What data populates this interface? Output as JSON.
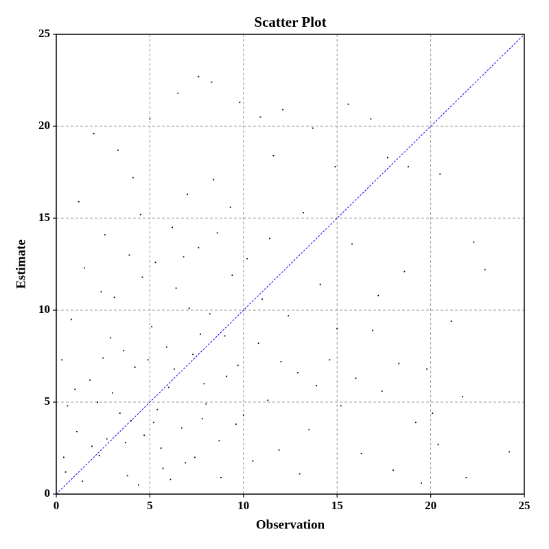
{
  "chart_data": {
    "type": "scatter",
    "title": "Scatter Plot",
    "x_label": "Observation",
    "y_label": "Estimate",
    "xlim": [
      0,
      25
    ],
    "ylim": [
      0,
      25
    ],
    "xticks": [
      0,
      5,
      10,
      15,
      20,
      25
    ],
    "yticks": [
      0,
      5,
      10,
      15,
      20,
      25
    ],
    "grid": true,
    "reference_line": {
      "color": "#0000ff",
      "x": [
        0,
        25
      ],
      "y": [
        0,
        25
      ]
    },
    "series": [
      {
        "color": "#000000",
        "x": [
          0.5,
          1.1,
          1.8,
          2.3,
          2.9,
          3.4,
          3.8,
          4.2,
          4.7,
          5.1,
          5.6,
          6.0,
          6.4,
          6.9,
          7.3,
          7.8,
          8.2,
          8.7,
          9.1,
          9.6,
          0.8,
          1.5,
          2.6,
          3.1,
          3.9,
          4.5,
          5.3,
          6.2,
          7.0,
          7.6,
          8.4,
          9.3,
          10.2,
          10.8,
          11.3,
          11.9,
          12.4,
          12.9,
          13.5,
          14.1,
          14.6,
          15.2,
          15.8,
          16.3,
          16.9,
          17.4,
          18.0,
          18.6,
          19.2,
          19.8,
          20.4,
          21.1,
          21.7,
          22.3,
          22.9,
          24.2,
          2.0,
          3.3,
          5.0,
          6.5,
          7.6,
          8.3,
          9.8,
          10.9,
          12.1,
          13.7,
          15.6,
          16.8,
          17.7,
          18.8,
          20.5,
          14.9,
          11.6,
          4.1,
          1.2,
          0.3,
          0.6,
          1.4,
          2.2,
          2.7,
          3.6,
          4.4,
          5.4,
          5.9,
          6.7,
          7.1,
          7.9,
          8.8,
          9.4,
          10.0,
          10.5,
          11.0,
          12.0,
          13.0,
          13.9,
          15.0,
          16.0,
          17.2,
          18.3,
          19.5,
          20.1,
          21.9,
          1.9,
          3.0,
          4.9,
          5.7,
          6.3,
          7.4,
          8.0,
          9.0,
          2.4,
          4.6,
          6.8,
          8.6,
          3.7,
          5.2,
          7.7,
          0.4,
          1.0,
          2.5,
          4.0,
          6.1,
          9.7,
          11.4,
          13.2
        ],
        "values": [
          1.2,
          3.4,
          6.2,
          2.1,
          8.5,
          4.4,
          1.0,
          6.9,
          3.2,
          9.1,
          2.5,
          5.8,
          11.2,
          1.7,
          7.6,
          4.1,
          9.8,
          2.9,
          6.4,
          3.8,
          9.5,
          12.3,
          14.1,
          10.7,
          13.0,
          15.2,
          12.6,
          14.5,
          16.3,
          13.4,
          17.1,
          15.6,
          12.8,
          8.2,
          5.1,
          2.4,
          9.7,
          6.6,
          3.5,
          11.4,
          7.3,
          4.8,
          13.6,
          2.2,
          8.9,
          5.6,
          1.3,
          12.1,
          3.9,
          6.8,
          2.7,
          9.4,
          5.3,
          13.7,
          12.2,
          2.3,
          19.6,
          18.7,
          20.4,
          21.8,
          22.7,
          22.4,
          21.3,
          20.5,
          20.9,
          19.9,
          21.2,
          20.4,
          18.3,
          17.8,
          17.4,
          17.8,
          18.4,
          17.2,
          15.9,
          7.3,
          4.8,
          0.7,
          5.0,
          3.0,
          7.8,
          0.5,
          4.6,
          8.0,
          3.6,
          10.1,
          6.0,
          0.9,
          11.9,
          4.3,
          1.8,
          10.6,
          7.2,
          1.1,
          5.9,
          9.0,
          6.3,
          10.8,
          7.1,
          0.6,
          4.4,
          0.9,
          2.6,
          5.5,
          7.3,
          1.4,
          6.8,
          2.0,
          4.9,
          8.6,
          11.0,
          11.8,
          12.9,
          14.2,
          2.8,
          3.9,
          8.7,
          2.0,
          5.7,
          7.4,
          4.0,
          0.8,
          7.0,
          13.9,
          15.3
        ]
      }
    ]
  }
}
